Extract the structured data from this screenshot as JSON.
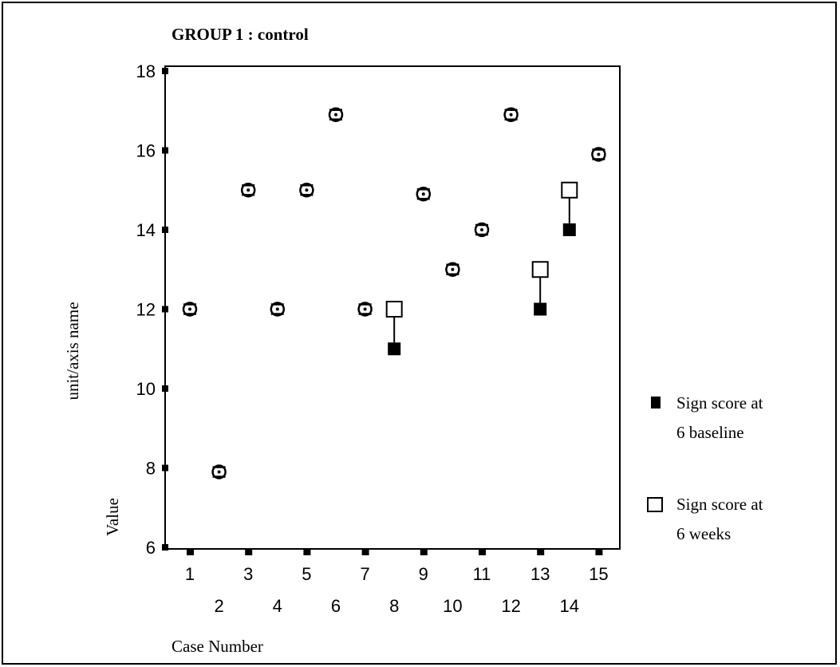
{
  "chart_data": {
    "type": "scatter",
    "title": "GROUP 1 : control",
    "xlabel": "Case Number",
    "ylabel_upper": "unit/axis name",
    "ylabel_lower": "Value",
    "ylim": [
      6,
      18
    ],
    "y_ticks": [
      "6",
      "8",
      "10",
      "12",
      "14",
      "16",
      "18"
    ],
    "x_ticks_upper": [
      "1",
      "3",
      "5",
      "7",
      "9",
      "11",
      "13",
      "15"
    ],
    "x_ticks_lower": [
      "2",
      "4",
      "6",
      "8",
      "10",
      "12",
      "14"
    ],
    "categories": [
      1,
      2,
      3,
      4,
      5,
      6,
      7,
      8,
      9,
      10,
      11,
      12,
      13,
      14,
      15
    ],
    "series": [
      {
        "name": "Sign score at 6 baseline",
        "marker": "filled-square",
        "values": [
          12,
          7.9,
          15,
          12,
          15,
          16.9,
          12,
          11,
          14.9,
          13,
          14,
          16.9,
          12,
          14,
          15.9
        ]
      },
      {
        "name": "Sign score at 6 weeks",
        "marker": "open-square",
        "values": [
          12,
          7.9,
          15,
          12,
          15,
          16.9,
          12,
          12,
          14.9,
          13,
          14,
          16.9,
          13,
          15,
          15.9
        ]
      }
    ],
    "legend": {
      "position": "right",
      "entries": [
        {
          "line1": "Sign score at",
          "line2": "6 baseline",
          "marker": "filled-square"
        },
        {
          "line1": "Sign score at",
          "line2": "6 weeks",
          "marker": "open-square"
        }
      ]
    },
    "colors": {
      "ink": "#000000",
      "background": "#ffffff"
    }
  }
}
